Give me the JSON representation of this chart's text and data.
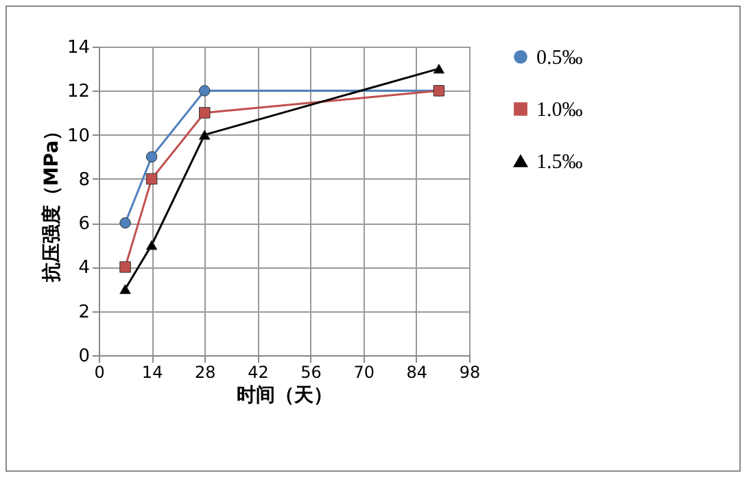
{
  "chart_data": {
    "type": "line",
    "xlabel": "时间（天）",
    "ylabel": "抗压强度（MPa）",
    "x": [
      7,
      14,
      28,
      90
    ],
    "series": [
      {
        "name": "0.5‰",
        "color": "#4f81bd",
        "marker": "circle",
        "values": [
          6,
          9,
          12,
          12
        ]
      },
      {
        "name": "1.0‰",
        "color": "#c0504d",
        "marker": "square",
        "values": [
          4,
          8,
          11,
          12
        ]
      },
      {
        "name": "1.5‰",
        "color": "#000000",
        "marker": "triangle",
        "values": [
          3,
          5,
          10,
          13
        ]
      }
    ],
    "xlim": [
      0,
      98
    ],
    "xticks": [
      0,
      14,
      28,
      42,
      56,
      70,
      84,
      98
    ],
    "ylim": [
      0,
      14
    ],
    "yticks": [
      0,
      2,
      4,
      6,
      8,
      10,
      12,
      14
    ],
    "grid": true,
    "legend": "right"
  }
}
